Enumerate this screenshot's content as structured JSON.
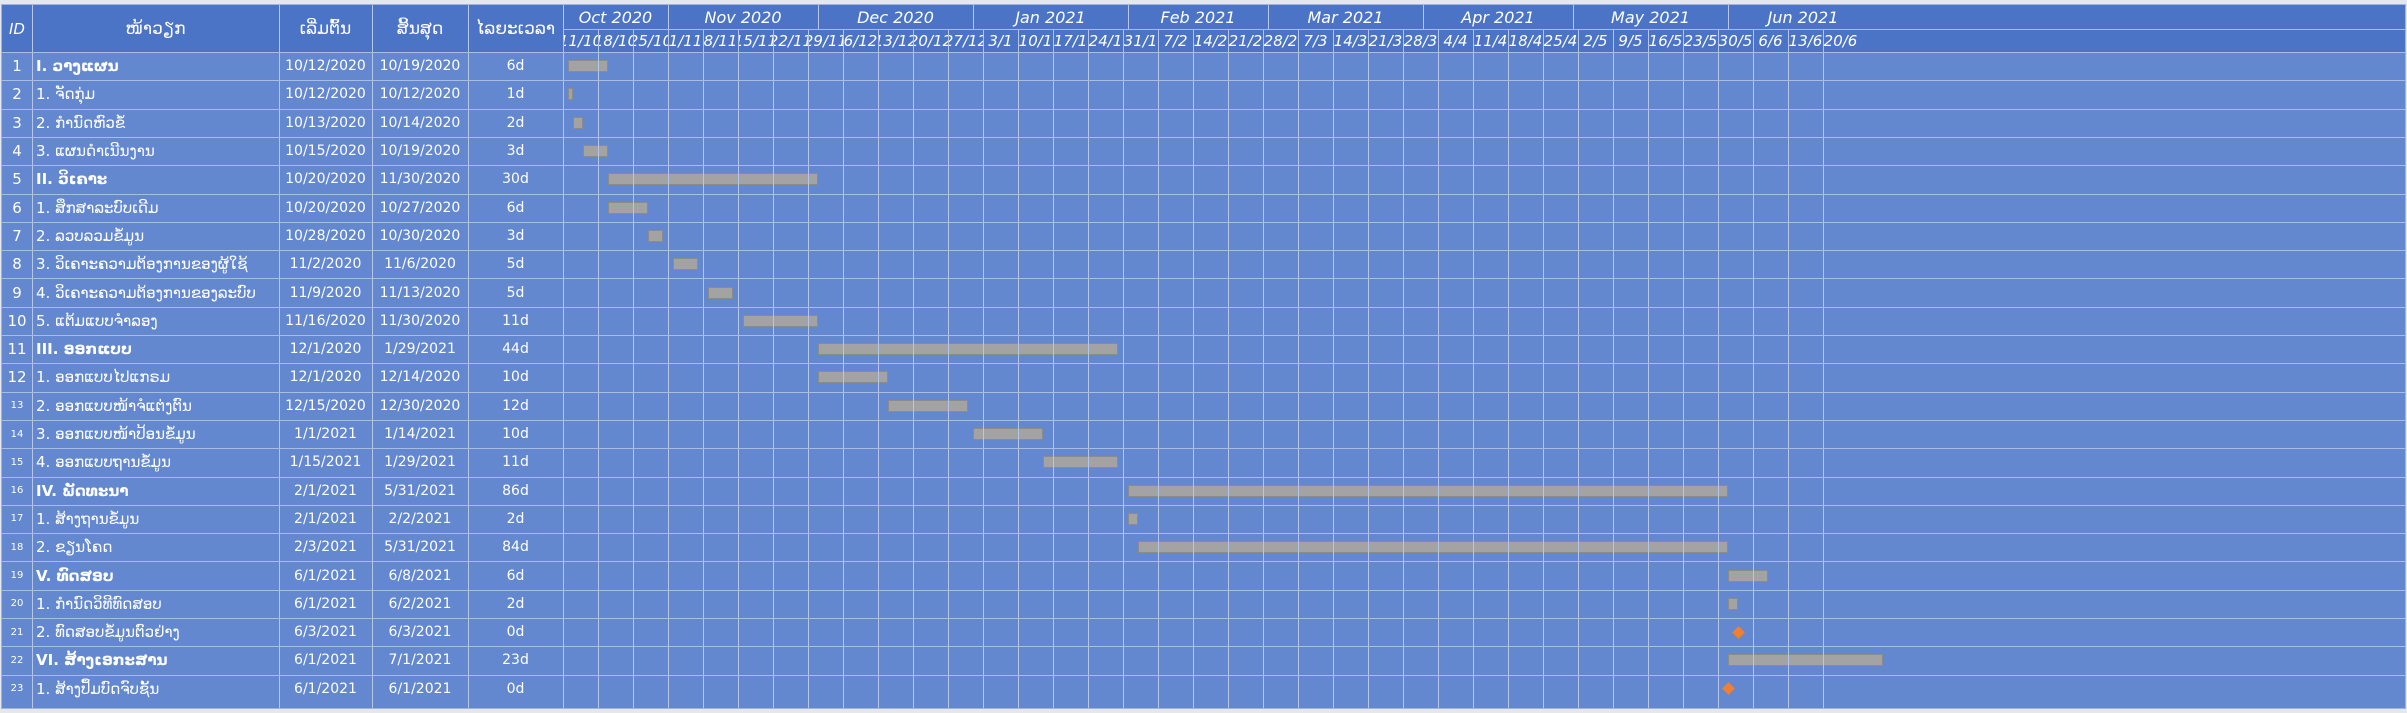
{
  "columns": {
    "id": "ID",
    "task": "ໜ້າວຽກ",
    "start": "ເລີ່ມຕົ້ນ",
    "end": "ສິ້ນສຸດ",
    "duration": "ໄລຍະເວລາ"
  },
  "timeline": {
    "months": [
      "Oct 2020",
      "Nov 2020",
      "Dec 2020",
      "Jan 2021",
      "Feb 2021",
      "Mar 2021",
      "Apr 2021",
      "May 2021",
      "Jun 2021"
    ],
    "weeks": [
      "11/10",
      "18/10",
      "25/10",
      "1/11",
      "8/11",
      "15/11",
      "22/11",
      "29/11",
      "6/12",
      "13/12",
      "20/12",
      "27/12",
      "3/1",
      "10/1",
      "17/1",
      "24/1",
      "31/1",
      "7/2",
      "14/2",
      "21/2",
      "28/2",
      "7/3",
      "14/3",
      "21/3",
      "28/3",
      "4/4",
      "11/4",
      "18/4",
      "25/4",
      "2/5",
      "9/5",
      "16/5",
      "23/5",
      "30/5",
      "6/6",
      "13/6",
      "20/6"
    ]
  },
  "tasks": [
    {
      "id": "1",
      "name": "I. ວາງແຜນ",
      "start": "10/12/2020",
      "end": "10/19/2020",
      "duration": "6d",
      "summary": true,
      "s": "2020-10-12",
      "e": "2020-10-19"
    },
    {
      "id": "2",
      "name": "1. ຈັດກຸ່ມ",
      "start": "10/12/2020",
      "end": "10/12/2020",
      "duration": "1d",
      "summary": false,
      "s": "2020-10-12",
      "e": "2020-10-12"
    },
    {
      "id": "3",
      "name": "2. ກຳນົດຫົວຂໍ້",
      "start": "10/13/2020",
      "end": "10/14/2020",
      "duration": "2d",
      "summary": false,
      "s": "2020-10-13",
      "e": "2020-10-14"
    },
    {
      "id": "4",
      "name": "3. ແຜນດຳເນີນງານ",
      "start": "10/15/2020",
      "end": "10/19/2020",
      "duration": "3d",
      "summary": false,
      "s": "2020-10-15",
      "e": "2020-10-19"
    },
    {
      "id": "5",
      "name": "II. ວິເຄາະ",
      "start": "10/20/2020",
      "end": "11/30/2020",
      "duration": "30d",
      "summary": true,
      "s": "2020-10-20",
      "e": "2020-11-30"
    },
    {
      "id": "6",
      "name": "1. ສຶກສາລະບົບເດີມ",
      "start": "10/20/2020",
      "end": "10/27/2020",
      "duration": "6d",
      "summary": false,
      "s": "2020-10-20",
      "e": "2020-10-27"
    },
    {
      "id": "7",
      "name": "2. ລວບລວມຂໍ້ມູນ",
      "start": "10/28/2020",
      "end": "10/30/2020",
      "duration": "3d",
      "summary": false,
      "s": "2020-10-28",
      "e": "2020-10-30"
    },
    {
      "id": "8",
      "name": "3. ວິເຄາະຄວາມຕ້ອງການຂອງຜູ້ໃຊ້",
      "start": "11/2/2020",
      "end": "11/6/2020",
      "duration": "5d",
      "summary": false,
      "s": "2020-11-02",
      "e": "2020-11-06"
    },
    {
      "id": "9",
      "name": "4. ວິເຄາະຄວາມຕ້ອງການຂອງລະບົບ",
      "start": "11/9/2020",
      "end": "11/13/2020",
      "duration": "5d",
      "summary": false,
      "s": "2020-11-09",
      "e": "2020-11-13"
    },
    {
      "id": "10",
      "name": "5. ແຕ້ມແບບຈຳລອງ",
      "start": "11/16/2020",
      "end": "11/30/2020",
      "duration": "11d",
      "summary": false,
      "s": "2020-11-16",
      "e": "2020-11-30"
    },
    {
      "id": "11",
      "name": "III. ອອກແບບ",
      "start": "12/1/2020",
      "end": "1/29/2021",
      "duration": "44d",
      "summary": true,
      "s": "2020-12-01",
      "e": "2021-01-29"
    },
    {
      "id": "12",
      "name": "1. ອອກແບບໄປແກຣມ",
      "start": "12/1/2020",
      "end": "12/14/2020",
      "duration": "10d",
      "summary": false,
      "s": "2020-12-01",
      "e": "2020-12-14"
    },
    {
      "id": "13",
      "name": "2. ອອກແບບໜ້າຈໍແຕ່ງຕົນ",
      "start": "12/15/2020",
      "end": "12/30/2020",
      "duration": "12d",
      "summary": false,
      "s": "2020-12-15",
      "e": "2020-12-30"
    },
    {
      "id": "14",
      "name": "3. ອອກແບບໜ້າປ້ອນຂໍ້ມູນ",
      "start": "1/1/2021",
      "end": "1/14/2021",
      "duration": "10d",
      "summary": false,
      "s": "2021-01-01",
      "e": "2021-01-14"
    },
    {
      "id": "15",
      "name": "4. ອອກແບບຖານຂໍ້ມູນ",
      "start": "1/15/2021",
      "end": "1/29/2021",
      "duration": "11d",
      "summary": false,
      "s": "2021-01-15",
      "e": "2021-01-29"
    },
    {
      "id": "16",
      "name": "IV. ພັດທະນາ",
      "start": "2/1/2021",
      "end": "5/31/2021",
      "duration": "86d",
      "summary": true,
      "s": "2021-02-01",
      "e": "2021-05-31"
    },
    {
      "id": "17",
      "name": "1. ສ້າງຖານຂໍ້ມູນ",
      "start": "2/1/2021",
      "end": "2/2/2021",
      "duration": "2d",
      "summary": false,
      "s": "2021-02-01",
      "e": "2021-02-02"
    },
    {
      "id": "18",
      "name": "2. ຂຽນໂຄດ",
      "start": "2/3/2021",
      "end": "5/31/2021",
      "duration": "84d",
      "summary": false,
      "s": "2021-02-03",
      "e": "2021-05-31"
    },
    {
      "id": "19",
      "name": "V. ທົດສອບ",
      "start": "6/1/2021",
      "end": "6/8/2021",
      "duration": "6d",
      "summary": true,
      "s": "2021-06-01",
      "e": "2021-06-08"
    },
    {
      "id": "20",
      "name": "1. ກຳນົດວິທີທົດສອບ",
      "start": "6/1/2021",
      "end": "6/2/2021",
      "duration": "2d",
      "summary": false,
      "s": "2021-06-01",
      "e": "2021-06-02"
    },
    {
      "id": "21",
      "name": "2. ທົດສອບຂໍ້ມູນຕົວຢ່າງ",
      "start": "6/3/2021",
      "end": "6/3/2021",
      "duration": "0d",
      "summary": false,
      "milestone": true,
      "s": "2021-06-03",
      "e": "2021-06-03"
    },
    {
      "id": "22",
      "name": "VI. ສ້າງເອກະສານ",
      "start": "6/1/2021",
      "end": "7/1/2021",
      "duration": "23d",
      "summary": true,
      "s": "2021-06-01",
      "e": "2021-07-01"
    },
    {
      "id": "23",
      "name": "1. ສ້າງປຶ້ມບົດຈົບຊັ້ນ",
      "start": "6/1/2021",
      "end": "6/1/2021",
      "duration": "0d",
      "summary": false,
      "milestone": true,
      "s": "2021-06-01",
      "e": "2021-06-01"
    }
  ],
  "colors": {
    "background": "#6388cf",
    "header": "#4b74c6",
    "bar": "#a3a3a3",
    "milestone": "#f07f35"
  }
}
